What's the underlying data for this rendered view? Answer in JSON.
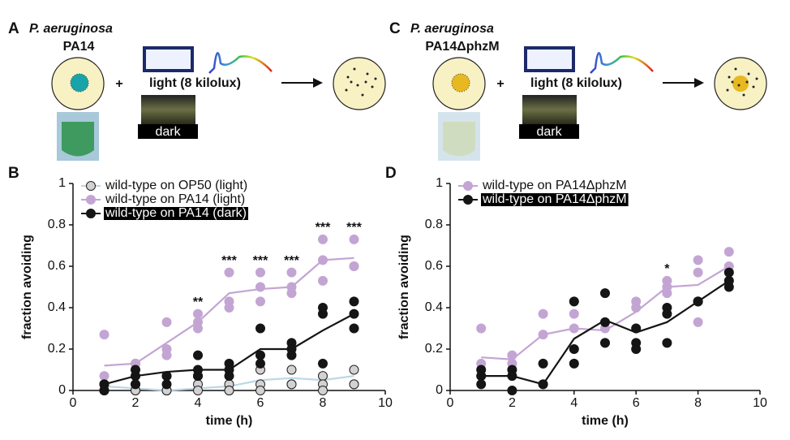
{
  "panels": [
    {
      "letter": "A",
      "organism": "P. aeruginosa",
      "strain": "PA14",
      "plus": "+",
      "light": "light (8 kilolux)",
      "dark": "dark"
    },
    {
      "letter": "C",
      "organism": "P. aeruginosa",
      "strain": "PA14ΔphzM",
      "plus": "+",
      "light": "light (8 kilolux)",
      "dark": "dark"
    }
  ],
  "chart_data": [
    {
      "type": "line",
      "panel": "B",
      "xlabel": "time (h)",
      "ylabel": "fraction avoiding",
      "xlim": [
        0,
        10
      ],
      "xticks": [
        0,
        2,
        4,
        6,
        8,
        10
      ],
      "ylim": [
        0,
        1
      ],
      "yticks": [
        0,
        0.2,
        0.4,
        0.6,
        0.8,
        1
      ],
      "legend": "upper left",
      "series": [
        {
          "name": "wild-type on OP50 (light)",
          "color": "#d2d2d2",
          "line_color": "#bcd7e6",
          "x": [
            1,
            2,
            3,
            4,
            5,
            6,
            7,
            8,
            9
          ],
          "values": [
            0.02,
            0.01,
            0.0,
            0.01,
            0.02,
            0.05,
            0.06,
            0.05,
            0.07
          ],
          "replicates": [
            [
              0.03,
              0.03,
              0,
              0.07,
              0.03,
              0.1,
              0.1,
              0.07,
              0.1
            ],
            [
              0,
              0,
              0,
              0.03,
              0,
              0.03,
              0.03,
              0.03,
              0.03
            ],
            [
              0,
              0,
              0,
              0,
              0,
              0,
              0.03,
              0,
              0.03
            ]
          ]
        },
        {
          "name": "wild-type on PA14 (light)",
          "color": "#c3a5d3",
          "line_color": "#c3a5d3",
          "x": [
            1,
            2,
            3,
            4,
            5,
            6,
            7,
            8,
            9
          ],
          "values": [
            0.12,
            0.13,
            0.23,
            0.33,
            0.47,
            0.49,
            0.5,
            0.63,
            0.64
          ],
          "replicates": [
            [
              0.27,
              0.13,
              0.33,
              0.37,
              0.57,
              0.57,
              0.57,
              0.73,
              0.73
            ],
            [
              0.07,
              0.13,
              0.2,
              0.33,
              0.43,
              0.5,
              0.5,
              0.63,
              0.6
            ],
            [
              0.03,
              0.13,
              0.17,
              0.3,
              0.4,
              0.43,
              0.47,
              0.53,
              0.6
            ]
          ]
        },
        {
          "name": "wild-type on PA14 (dark)",
          "color": "#151515",
          "line_color": "#151515",
          "x": [
            1,
            2,
            3,
            4,
            5,
            6,
            7,
            8,
            9
          ],
          "values": [
            0.03,
            0.07,
            0.09,
            0.1,
            0.1,
            0.2,
            0.2,
            0.29,
            0.37
          ],
          "replicates": [
            [
              0.03,
              0.1,
              0.07,
              0.17,
              0.13,
              0.3,
              0.23,
              0.4,
              0.43
            ],
            [
              0.03,
              0.07,
              0.07,
              0.1,
              0.1,
              0.17,
              0.2,
              0.37,
              0.37
            ],
            [
              0,
              0.03,
              0.03,
              0.07,
              0.07,
              0.13,
              0.17,
              0.13,
              0.3
            ]
          ]
        }
      ],
      "annotations": [
        {
          "text": "**",
          "x": 4
        },
        {
          "text": "***",
          "x": 5
        },
        {
          "text": "***",
          "x": 6
        },
        {
          "text": "***",
          "x": 7
        },
        {
          "text": "***",
          "x": 8
        },
        {
          "text": "***",
          "x": 9
        }
      ]
    },
    {
      "type": "line",
      "panel": "D",
      "xlabel": "time (h)",
      "ylabel": "fraction avoiding",
      "xlim": [
        0,
        10
      ],
      "xticks": [
        0,
        2,
        4,
        6,
        8,
        10
      ],
      "ylim": [
        0,
        1
      ],
      "yticks": [
        0,
        0.2,
        0.4,
        0.6,
        0.8,
        1
      ],
      "legend": "upper left",
      "series": [
        {
          "name": "wild-type on PA14ΔphzM",
          "color": "#c3a5d3",
          "line_color": "#c3a5d3",
          "x": [
            1,
            2,
            3,
            4,
            5,
            6,
            7,
            8,
            9
          ],
          "values": [
            0.16,
            0.15,
            0.27,
            0.3,
            0.29,
            0.38,
            0.5,
            0.51,
            0.6
          ],
          "replicates": [
            [
              0.3,
              0.17,
              0.37,
              0.43,
              0.33,
              0.43,
              0.53,
              0.63,
              0.67
            ],
            [
              0.13,
              0.13,
              0.27,
              0.37,
              0.3,
              0.4,
              0.5,
              0.57,
              0.6
            ],
            [
              0.07,
              0.13,
              0.13,
              0.3,
              0.23,
              0.3,
              0.47,
              0.33,
              0.53
            ]
          ]
        },
        {
          "name": "wild-type on PA14ΔphzM",
          "color": "#151515",
          "line_color": "#151515",
          "x": [
            1,
            2,
            3,
            4,
            5,
            6,
            7,
            8,
            9
          ],
          "values": [
            0.07,
            0.07,
            0.03,
            0.25,
            0.34,
            0.28,
            0.33,
            0.43,
            0.53
          ],
          "replicates": [
            [
              0.1,
              0.1,
              0.13,
              0.43,
              0.47,
              0.3,
              0.4,
              0.43,
              0.57
            ],
            [
              0.07,
              0.07,
              0.03,
              0.2,
              0.33,
              0.23,
              0.37,
              0.43,
              0.53
            ],
            [
              0.03,
              0,
              0.03,
              0.13,
              0.23,
              0.2,
              0.23,
              0.43,
              0.5
            ]
          ]
        }
      ],
      "annotations": [
        {
          "text": "*",
          "x": 7
        }
      ]
    }
  ]
}
